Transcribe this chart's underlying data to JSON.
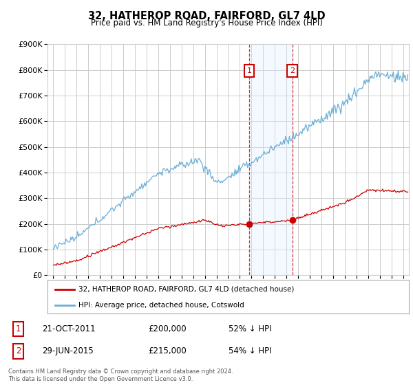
{
  "title": "32, HATHEROP ROAD, FAIRFORD, GL7 4LD",
  "subtitle": "Price paid vs. HM Land Registry's House Price Index (HPI)",
  "legend_line1": "32, HATHEROP ROAD, FAIRFORD, GL7 4LD (detached house)",
  "legend_line2": "HPI: Average price, detached house, Cotswold",
  "transaction1_date": "21-OCT-2011",
  "transaction1_price": "£200,000",
  "transaction1_hpi": "52% ↓ HPI",
  "transaction1_year": 2011.8,
  "transaction1_value": 200000,
  "transaction2_date": "29-JUN-2015",
  "transaction2_price": "£215,000",
  "transaction2_hpi": "54% ↓ HPI",
  "transaction2_year": 2015.5,
  "transaction2_value": 215000,
  "footnote": "Contains HM Land Registry data © Crown copyright and database right 2024.\nThis data is licensed under the Open Government Licence v3.0.",
  "hpi_color": "#6baed6",
  "price_color": "#cc0000",
  "background_color": "#ffffff",
  "grid_color": "#cccccc",
  "highlight_color": "#ddeeff",
  "ylim_max": 900000,
  "xlim_start": 1994.5,
  "xlim_end": 2025.5
}
